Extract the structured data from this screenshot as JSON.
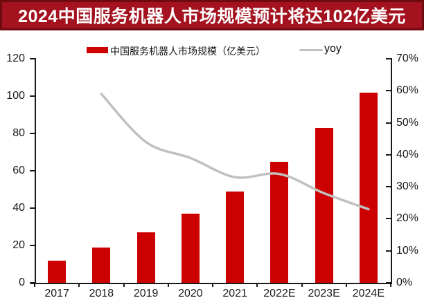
{
  "title": {
    "text": "2024中国服务机器人市场规模预计将达102亿美元"
  },
  "legend": {
    "bar_label": "中国服务机器人市场规模（亿美元）",
    "line_label": "yoy"
  },
  "colors": {
    "banner_bg": "#A3121E",
    "banner_border": "#6E0A10",
    "banner_text": "#FFFFFF",
    "bar": "#CC0000",
    "line": "#C0C0C0",
    "axis": "#1A1A1A"
  },
  "chart_data": {
    "type": "bar",
    "categories": [
      "2017",
      "2018",
      "2019",
      "2020",
      "2021",
      "2022E",
      "2023E",
      "2024E"
    ],
    "series": [
      {
        "name": "中国服务机器人市场规模（亿美元）",
        "type": "bar",
        "axis": "left",
        "values": [
          12,
          19,
          27,
          37,
          49,
          65,
          83,
          102
        ]
      },
      {
        "name": "yoy",
        "type": "line",
        "axis": "right",
        "unit": "%",
        "values": [
          null,
          59,
          44,
          39,
          33,
          34,
          28,
          23
        ]
      }
    ],
    "left_axis": {
      "min": 0,
      "max": 120,
      "step": 20,
      "ticks": [
        "0",
        "20",
        "40",
        "60",
        "80",
        "100",
        "120"
      ]
    },
    "right_axis": {
      "min": 0,
      "max": 70,
      "step": 10,
      "ticks": [
        "0%",
        "10%",
        "20%",
        "30%",
        "40%",
        "50%",
        "60%",
        "70%"
      ]
    },
    "grid": false,
    "legend_position": "top"
  }
}
